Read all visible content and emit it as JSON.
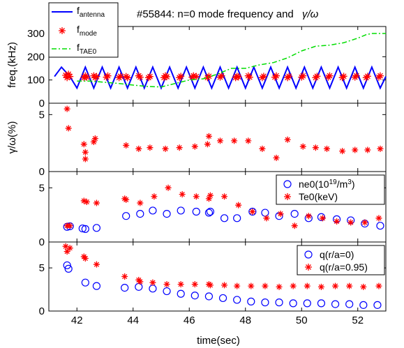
{
  "title": "#55844: n=0 mode frequency and",
  "title_symbol": "γ/ω",
  "xlabel": "time(sec)",
  "x_ticks": [
    "42",
    "44",
    "46",
    "48",
    "50",
    "52"
  ],
  "colors": {
    "blue": "#0000ff",
    "red": "#ff0000",
    "green": "#00dd00"
  },
  "chart_data": [
    {
      "type": "line",
      "panel": "frequency",
      "ylabel": "freq.(kHz)",
      "xlim": [
        41,
        53
      ],
      "ylim": [
        0,
        330
      ],
      "yticks": [
        "0",
        "100",
        "200",
        "300"
      ],
      "legend_position": "top-left",
      "legend": [
        {
          "base": "f",
          "sub": "antenna"
        },
        {
          "base": "f",
          "sub": "mode"
        },
        {
          "base": "f",
          "sub": "TAE0"
        }
      ],
      "series": [
        {
          "style": "line",
          "color": "#0000ff",
          "x": [
            41.2,
            41.45,
            41.75,
            42.0,
            42.3,
            42.6,
            42.9,
            43.2,
            43.5,
            43.8,
            44.1,
            44.4,
            44.7,
            45.0,
            45.3,
            45.6,
            45.9,
            46.2,
            46.5,
            46.8,
            47.1,
            47.4,
            47.7,
            48.0,
            48.3,
            48.6,
            48.9,
            49.2,
            49.5,
            49.8,
            50.1,
            50.4,
            50.7,
            51.0,
            51.3,
            51.6,
            51.9,
            52.2,
            52.5,
            52.8,
            53.0
          ],
          "y": [
            115,
            155,
            115,
            65,
            155,
            65,
            155,
            65,
            155,
            65,
            155,
            65,
            155,
            65,
            155,
            65,
            155,
            65,
            155,
            65,
            155,
            65,
            155,
            65,
            155,
            65,
            155,
            65,
            155,
            65,
            155,
            65,
            155,
            65,
            155,
            65,
            155,
            65,
            155,
            65,
            115
          ]
        },
        {
          "style": "markers",
          "color": "#ff0000",
          "x": [
            41.6,
            41.65,
            41.7,
            41.75,
            42.25,
            42.3,
            42.35,
            42.6,
            42.65,
            42.7,
            43.05,
            43.1,
            43.5,
            43.55,
            43.75,
            43.8,
            44.2,
            44.25,
            44.55,
            44.6,
            45.1,
            45.15,
            45.2,
            45.65,
            45.7,
            46.1,
            46.15,
            46.25,
            46.65,
            46.7,
            47.1,
            47.15,
            47.65,
            47.7,
            47.75,
            48.1,
            48.15,
            48.6,
            48.65,
            49.05,
            49.1,
            49.5,
            49.55,
            50.0,
            50.05,
            50.5,
            50.55,
            50.95,
            51.0,
            51.45,
            51.5,
            51.9,
            51.95,
            52.3,
            52.35,
            52.75,
            52.8
          ],
          "y": [
            120,
            110,
            125,
            115,
            110,
            118,
            112,
            118,
            110,
            115,
            112,
            118,
            110,
            116,
            115,
            110,
            118,
            112,
            110,
            115,
            110,
            118,
            114,
            110,
            116,
            112,
            118,
            115,
            110,
            116,
            112,
            118,
            110,
            116,
            113,
            118,
            112,
            110,
            116,
            112,
            118,
            110,
            116,
            112,
            118,
            110,
            116,
            112,
            118,
            110,
            116,
            112,
            118,
            110,
            116,
            112,
            118
          ]
        },
        {
          "style": "dashdot",
          "color": "#00dd00",
          "x": [
            42.0,
            42.5,
            43.0,
            43.5,
            44.0,
            44.5,
            45.0,
            45.5,
            46.0,
            46.5,
            47.0,
            47.5,
            48.0,
            48.5,
            49.0,
            49.5,
            50.0,
            50.5,
            51.0,
            51.5,
            52.0,
            52.3,
            52.5,
            53.0
          ],
          "y": [
            95,
            95,
            90,
            85,
            78,
            72,
            70,
            85,
            100,
            105,
            125,
            150,
            150,
            165,
            175,
            195,
            225,
            245,
            250,
            260,
            280,
            295,
            300,
            300
          ]
        }
      ]
    },
    {
      "type": "scatter",
      "panel": "growth",
      "ylabel": "γ/ω(%)",
      "xlim": [
        41,
        53
      ],
      "ylim": [
        0,
        6
      ],
      "yticks": [
        "0",
        "5"
      ],
      "series": [
        {
          "marker": "asterisk",
          "color": "#ff0000",
          "x": [
            41.65,
            41.7,
            42.25,
            42.3,
            42.3,
            42.6,
            42.65,
            43.75,
            44.2,
            44.6,
            45.15,
            45.65,
            46.2,
            46.65,
            46.7,
            47.1,
            47.6,
            48.1,
            48.6,
            49.1,
            49.5,
            50.05,
            50.5,
            50.9,
            51.45,
            51.9,
            52.35,
            52.8
          ],
          "y": [
            5.5,
            3.8,
            2.4,
            1.7,
            1.1,
            2.6,
            2.9,
            2.3,
            2.0,
            2.1,
            2.0,
            2.1,
            2.2,
            2.4,
            3.1,
            2.7,
            2.7,
            2.7,
            2.0,
            1.2,
            2.8,
            2.2,
            2.1,
            2.0,
            1.8,
            1.9,
            1.9,
            2.0
          ]
        }
      ]
    },
    {
      "type": "scatter",
      "panel": "density-temperature",
      "xlim": [
        41,
        53
      ],
      "ylim": [
        0,
        6.5
      ],
      "yticks": [
        "0",
        "5"
      ],
      "legend_position": "top-right",
      "legend": [
        {
          "base": "ne0(10",
          "sup": "19",
          "tail": "/m",
          "sup2": "3",
          "end": ")",
          "marker": "circle",
          "color": "#0000ff"
        },
        {
          "base": "Te0(keV)",
          "marker": "asterisk",
          "color": "#ff0000"
        }
      ],
      "series": [
        {
          "marker": "circle",
          "color": "#0000ff",
          "x": [
            41.65,
            41.75,
            42.2,
            42.3,
            42.7,
            43.75,
            44.25,
            44.7,
            45.2,
            45.7,
            46.25,
            46.7,
            46.75,
            47.25,
            47.7,
            48.25,
            48.7,
            49.2,
            49.75,
            50.25,
            50.7,
            51.25,
            51.75,
            52.25,
            52.8
          ],
          "y": [
            1.4,
            1.45,
            1.25,
            1.2,
            1.3,
            2.4,
            2.6,
            2.9,
            2.6,
            2.9,
            2.8,
            2.7,
            2.8,
            2.2,
            2.2,
            2.8,
            2.7,
            2.4,
            2.6,
            2.2,
            2.3,
            2.1,
            2.0,
            1.7,
            1.5
          ]
        },
        {
          "marker": "asterisk",
          "color": "#ff0000",
          "x": [
            41.65,
            41.75,
            42.25,
            42.35,
            42.7,
            43.7,
            43.75,
            44.25,
            44.75,
            45.25,
            45.75,
            46.25,
            46.7,
            46.75,
            47.25,
            47.75,
            48.25,
            48.75,
            49.25,
            49.75,
            50.25,
            50.75,
            51.25,
            51.75,
            52.25,
            52.75
          ],
          "y": [
            1.5,
            1.5,
            3.8,
            3.7,
            3.6,
            4.0,
            3.9,
            3.6,
            4.2,
            5.0,
            4.4,
            4.2,
            4.0,
            4.3,
            4.2,
            3.4,
            2.8,
            2.2,
            2.6,
            1.5,
            2.4,
            2.2,
            1.9,
            1.8,
            1.8,
            2.2
          ]
        }
      ]
    },
    {
      "type": "scatter",
      "panel": "safety-factor",
      "xlim": [
        41,
        53
      ],
      "ylim": [
        0,
        8
      ],
      "yticks": [
        "0",
        "5"
      ],
      "legend_position": "top-right",
      "legend": [
        {
          "base": "q(r/a=0)",
          "marker": "circle",
          "color": "#0000ff"
        },
        {
          "base": "q(r/a=0.95)",
          "marker": "asterisk",
          "color": "#ff0000"
        }
      ],
      "series": [
        {
          "marker": "circle",
          "color": "#0000ff",
          "x": [
            41.65,
            41.7,
            42.3,
            42.7,
            43.7,
            44.2,
            44.7,
            45.2,
            45.7,
            46.2,
            46.7,
            47.2,
            47.7,
            48.2,
            48.7,
            49.2,
            49.7,
            50.2,
            50.7,
            51.2,
            51.7,
            52.2,
            52.7
          ],
          "y": [
            5.3,
            4.9,
            3.3,
            2.9,
            2.7,
            2.8,
            2.6,
            2.3,
            2.0,
            1.8,
            1.7,
            1.5,
            1.3,
            1.1,
            1.0,
            1.0,
            0.9,
            0.9,
            0.9,
            0.8,
            0.8,
            0.7,
            0.7
          ]
        },
        {
          "marker": "asterisk",
          "color": "#ff0000",
          "x": [
            41.6,
            41.65,
            41.75,
            42.25,
            42.3,
            42.7,
            43.7,
            44.2,
            44.25,
            44.7,
            45.2,
            45.7,
            46.2,
            46.7,
            46.75,
            47.25,
            47.7,
            48.2,
            48.7,
            49.2,
            49.7,
            50.2,
            50.7,
            51.2,
            51.7,
            52.2,
            52.75
          ],
          "y": [
            7.5,
            6.9,
            7.3,
            6.3,
            6.1,
            5.4,
            4.0,
            3.6,
            3.4,
            3.3,
            3.1,
            3.1,
            3.1,
            3.1,
            3.0,
            3.0,
            2.9,
            2.9,
            2.9,
            2.8,
            2.9,
            2.9,
            2.8,
            2.9,
            2.9,
            2.8,
            2.9
          ]
        }
      ]
    }
  ]
}
